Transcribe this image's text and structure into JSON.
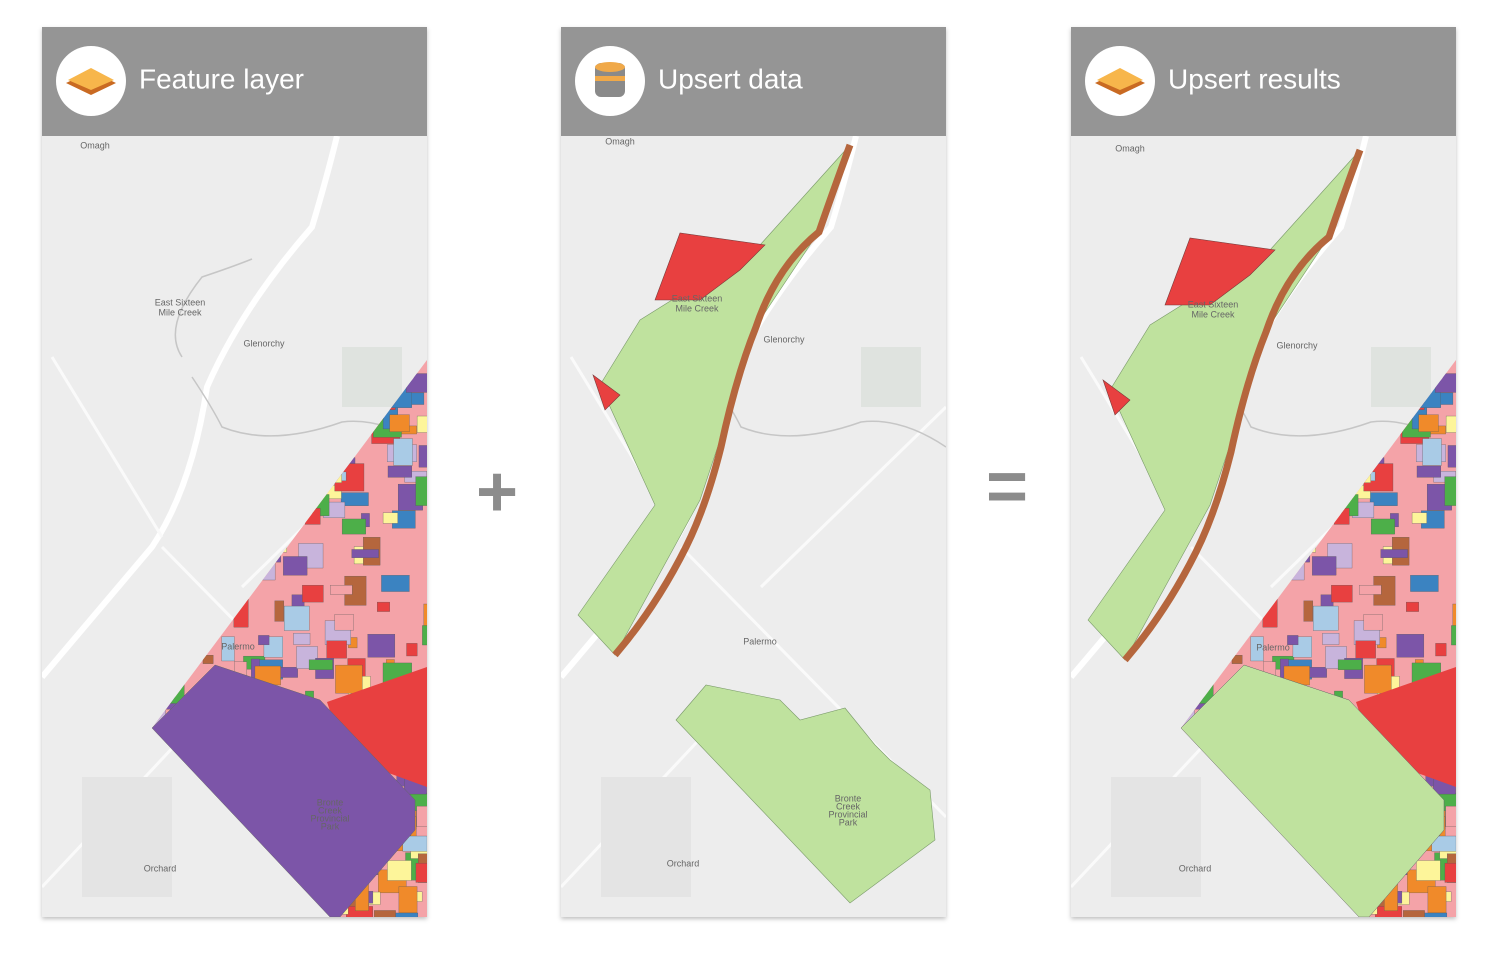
{
  "panels": [
    {
      "title": "Feature layer",
      "labels": [
        "Omagh",
        "East Sixteen",
        "Mile Creek",
        "Glenorchy",
        "Palermo",
        "Orchard",
        "Bronte",
        "Creek",
        "Provincial",
        "Park"
      ]
    },
    {
      "title": "Upsert data",
      "labels": [
        "Omagh",
        "East Sixteen",
        "Mile Creek",
        "Glenorchy",
        "Palermo",
        "Orchard",
        "Bronte",
        "Creek",
        "Provincial",
        "Park"
      ]
    },
    {
      "title": "Upsert results",
      "labels": [
        "Omagh",
        "East Sixteen",
        "Mile Creek",
        "Glenorchy",
        "Palermo",
        "Orchard"
      ]
    }
  ],
  "operators": [
    "+",
    "="
  ]
}
